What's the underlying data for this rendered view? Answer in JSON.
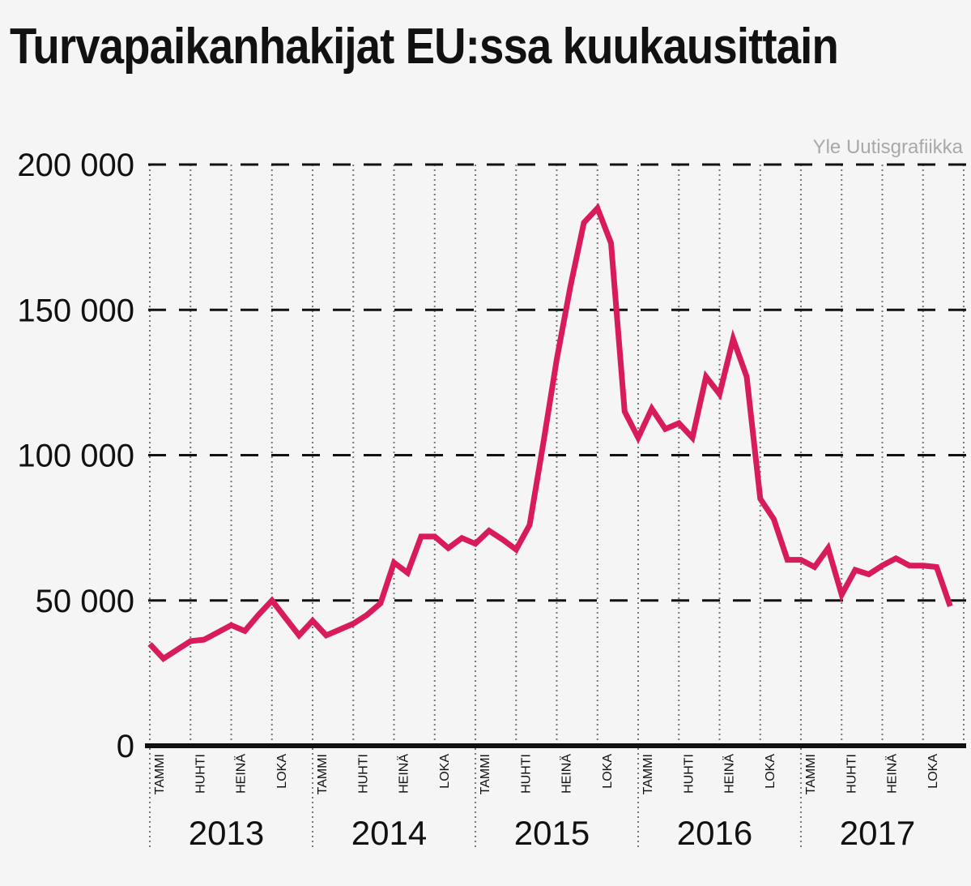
{
  "header": {
    "title": "Turvapaikanhakijat EU:ssa kuukausittain",
    "credit": "Yle Uutisgrafiikka"
  },
  "colors": {
    "line": "#d81b5a",
    "grid": "#111111",
    "background": "#f5f5f5"
  },
  "chart_data": {
    "type": "line",
    "title": "Turvapaikanhakijat EU:ssa kuukausittain",
    "xlabel": "",
    "ylabel": "",
    "ylim": [
      0,
      200000
    ],
    "grid": true,
    "y_ticks": [
      0,
      50000,
      100000,
      150000,
      200000
    ],
    "y_tick_labels": [
      "0",
      "50 000",
      "100 000",
      "150 000",
      "200 000"
    ],
    "month_tick_labels": [
      "TAMMI",
      "HUHTI",
      "HEINÄ",
      "LOKA"
    ],
    "years": [
      "2013",
      "2014",
      "2015",
      "2016",
      "2017"
    ],
    "x": [
      "2013-01",
      "2013-02",
      "2013-03",
      "2013-04",
      "2013-05",
      "2013-06",
      "2013-07",
      "2013-08",
      "2013-09",
      "2013-10",
      "2013-11",
      "2013-12",
      "2014-01",
      "2014-02",
      "2014-03",
      "2014-04",
      "2014-05",
      "2014-06",
      "2014-07",
      "2014-08",
      "2014-09",
      "2014-10",
      "2014-11",
      "2014-12",
      "2015-01",
      "2015-02",
      "2015-03",
      "2015-04",
      "2015-05",
      "2015-06",
      "2015-07",
      "2015-08",
      "2015-09",
      "2015-10",
      "2015-11",
      "2015-12",
      "2016-01",
      "2016-02",
      "2016-03",
      "2016-04",
      "2016-05",
      "2016-06",
      "2016-07",
      "2016-08",
      "2016-09",
      "2016-10",
      "2016-11",
      "2016-12",
      "2017-01",
      "2017-02",
      "2017-03",
      "2017-04",
      "2017-05",
      "2017-06",
      "2017-07",
      "2017-08",
      "2017-09",
      "2017-10",
      "2017-11",
      "2017-12"
    ],
    "series": [
      {
        "values": [
          35000,
          30000,
          33000,
          36000,
          36500,
          39000,
          41500,
          39500,
          45000,
          50000,
          44000,
          38000,
          43000,
          38000,
          40000,
          42000,
          45000,
          49000,
          63000,
          59500,
          72000,
          72000,
          68000,
          71500,
          69500,
          74000,
          71000,
          67500,
          76000,
          104000,
          133000,
          158000,
          180000,
          185000,
          173000,
          115000,
          106000,
          116000,
          109000,
          111000,
          106000,
          127000,
          121000,
          140000,
          127000,
          85000,
          78000,
          64000,
          64000,
          61500,
          68000,
          52000,
          60500,
          59000,
          62000,
          64500,
          62000,
          62000,
          61500,
          48000
        ]
      }
    ]
  }
}
